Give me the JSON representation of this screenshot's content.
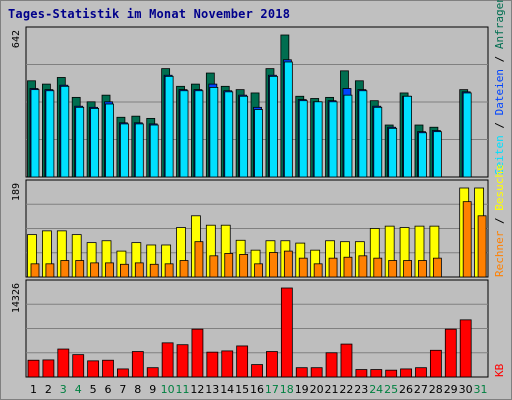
{
  "title": "Tages-Statistik im Monat November 2018",
  "colors": {
    "background": "#c0c0c0",
    "panel": "#bebebe",
    "grid": "#808080",
    "hits": "#006e50",
    "files": "#0044ff",
    "pages": "#00e0ff",
    "visits": "#ffff00",
    "sites": "#ff8000",
    "kbytes": "#ff0000",
    "weekday_label": "#000000",
    "weekend_label": "#008040"
  },
  "right_labels": {
    "top": [
      "Anfragen",
      "Dateien",
      "Seiten"
    ],
    "middle": [
      "Besuche",
      "Rechner"
    ],
    "bottom": [
      "KB"
    ],
    "separator": " / "
  },
  "chart_data": [
    {
      "type": "bar",
      "panel": "top",
      "max_label": "642",
      "ylim": [
        0,
        642
      ],
      "categories": [
        "1",
        "2",
        "3",
        "4",
        "5",
        "6",
        "7",
        "8",
        "9",
        "10",
        "11",
        "12",
        "13",
        "14",
        "15",
        "16",
        "17",
        "18",
        "19",
        "20",
        "21",
        "22",
        "23",
        "24",
        "25",
        "26",
        "27",
        "28",
        "29",
        "30",
        "31"
      ],
      "series": [
        {
          "name": "Anfragen",
          "values": [
            435,
            420,
            450,
            360,
            340,
            370,
            270,
            275,
            265,
            490,
            410,
            420,
            470,
            410,
            395,
            380,
            490,
            642,
            365,
            355,
            360,
            480,
            435,
            345,
            235,
            380,
            235,
            225,
            0,
            395,
            0
          ]
        },
        {
          "name": "Dateien",
          "values": [
            400,
            395,
            415,
            320,
            315,
            340,
            245,
            245,
            240,
            460,
            395,
            395,
            420,
            390,
            370,
            315,
            460,
            530,
            350,
            340,
            345,
            400,
            395,
            320,
            225,
            365,
            205,
            210,
            0,
            385,
            0
          ]
        },
        {
          "name": "Seiten",
          "values": [
            395,
            390,
            410,
            315,
            310,
            330,
            240,
            240,
            235,
            455,
            390,
            390,
            405,
            385,
            365,
            305,
            455,
            520,
            345,
            340,
            340,
            370,
            390,
            315,
            220,
            365,
            200,
            205,
            0,
            380,
            0
          ]
        }
      ]
    },
    {
      "type": "bar",
      "panel": "middle",
      "max_label": "189",
      "ylim": [
        0,
        189
      ],
      "categories": [
        "1",
        "2",
        "3",
        "4",
        "5",
        "6",
        "7",
        "8",
        "9",
        "10",
        "11",
        "12",
        "13",
        "14",
        "15",
        "16",
        "17",
        "18",
        "19",
        "20",
        "21",
        "22",
        "23",
        "24",
        "25",
        "26",
        "27",
        "28",
        "29",
        "30",
        "31"
      ],
      "series": [
        {
          "name": "Besuche",
          "values": [
            90,
            98,
            98,
            90,
            73,
            77,
            55,
            73,
            68,
            68,
            105,
            130,
            110,
            110,
            78,
            57,
            77,
            77,
            72,
            57,
            77,
            75,
            75,
            103,
            108,
            105,
            108,
            108,
            0,
            189,
            189
          ]
        },
        {
          "name": "Rechner",
          "values": [
            28,
            28,
            35,
            35,
            30,
            30,
            27,
            30,
            27,
            28,
            35,
            75,
            45,
            50,
            48,
            28,
            52,
            55,
            40,
            28,
            40,
            42,
            45,
            40,
            35,
            35,
            35,
            40,
            0,
            160,
            130
          ]
        }
      ]
    },
    {
      "type": "bar",
      "panel": "bottom",
      "max_label": "14326",
      "ylim": [
        0,
        14326
      ],
      "categories": [
        "1",
        "2",
        "3",
        "4",
        "5",
        "6",
        "7",
        "8",
        "9",
        "10",
        "11",
        "12",
        "13",
        "14",
        "15",
        "16",
        "17",
        "18",
        "19",
        "20",
        "21",
        "22",
        "23",
        "24",
        "25",
        "26",
        "27",
        "28",
        "29",
        "30",
        "31"
      ],
      "series": [
        {
          "name": "KB",
          "values": [
            2700,
            2750,
            4500,
            3600,
            2600,
            2700,
            1300,
            4100,
            1500,
            5500,
            5200,
            7700,
            4000,
            4200,
            5000,
            2000,
            4100,
            14326,
            1500,
            1500,
            3900,
            5300,
            1200,
            1200,
            1100,
            1300,
            1500,
            4300,
            7700,
            9200,
            0
          ]
        }
      ]
    }
  ],
  "x_labels": {
    "days": [
      "1",
      "2",
      "3",
      "4",
      "5",
      "6",
      "7",
      "8",
      "9",
      "10",
      "11",
      "12",
      "13",
      "14",
      "15",
      "16",
      "17",
      "18",
      "19",
      "20",
      "21",
      "22",
      "23",
      "24",
      "25",
      "26",
      "27",
      "28",
      "29",
      "30",
      "31"
    ],
    "weekend": [
      "3",
      "4",
      "10",
      "11",
      "17",
      "18",
      "24",
      "25",
      "31"
    ]
  }
}
